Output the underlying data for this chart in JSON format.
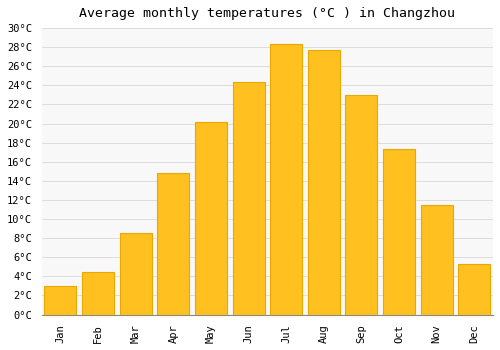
{
  "title": "Average monthly temperatures (°C ) in Changzhou",
  "months": [
    "Jan",
    "Feb",
    "Mar",
    "Apr",
    "May",
    "Jun",
    "Jul",
    "Aug",
    "Sep",
    "Oct",
    "Nov",
    "Dec"
  ],
  "values": [
    3,
    4.5,
    8.5,
    14.8,
    20.2,
    24.3,
    28.3,
    27.7,
    23.0,
    17.3,
    11.5,
    5.3
  ],
  "bar_color": "#FFC020",
  "bar_edge_color": "#E8A800",
  "ylim": [
    0,
    30
  ],
  "ytick_step": 2,
  "background_color": "#FFFFFF",
  "plot_bg_color": "#F8F8F8",
  "grid_color": "#DDDDDD",
  "title_fontsize": 9.5,
  "tick_fontsize": 7.5,
  "font_family": "monospace"
}
